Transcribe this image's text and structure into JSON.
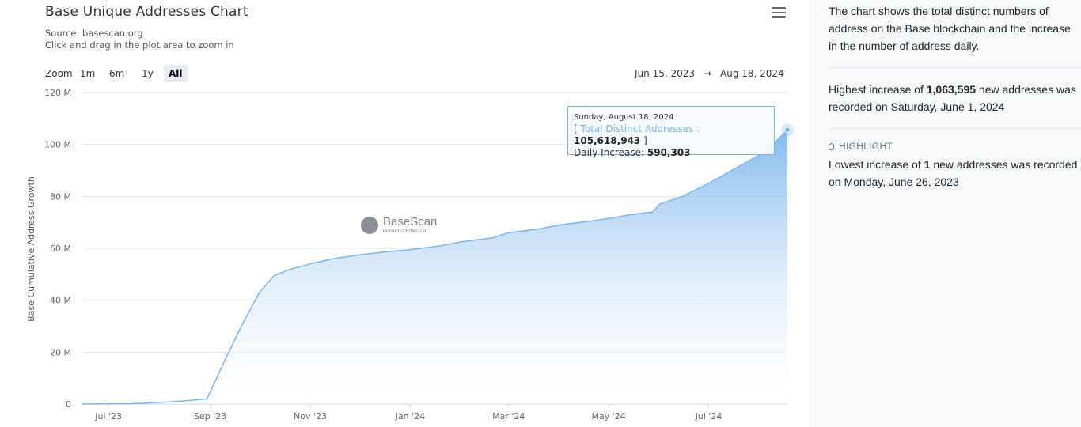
{
  "chart_header": {
    "title": "Base Unique Addresses Chart",
    "source": "Source: basescan.org",
    "hint": "Click and drag in the plot area to zoom in"
  },
  "zoom": {
    "label": "Zoom",
    "options": [
      "1m",
      "6m",
      "1y",
      "All"
    ],
    "selected": "All"
  },
  "range": {
    "from": "Jun 15, 2023",
    "arrow": "→",
    "to": "Aug 18, 2024"
  },
  "watermark": {
    "name": "BaseScan",
    "sub": "Product of Etherscan"
  },
  "tooltip": {
    "date": "Sunday, August 18, 2024",
    "bracket_open": "[",
    "series_label": "Total Distinct Addresses",
    "separator": ":",
    "value": "105,618,943",
    "bracket_close": "]",
    "daily_label": "Daily Increase:",
    "daily_value": "590,303"
  },
  "side_panel": {
    "description": "The chart shows the total distinct numbers of address on the Base blockchain and the increase in the number of address daily.",
    "highest_prefix": "Highest increase of",
    "highest_value": "1,063,595",
    "highest_suffix": "new addresses was recorded on Saturday, June 1, 2024",
    "highlight_label": "HIGHLIGHT",
    "lowest_prefix": "Lowest increase of",
    "lowest_value": "1",
    "lowest_suffix": "new addresses was recorded on Monday, June 26, 2023"
  },
  "colors": {
    "series": "#7cb5ec",
    "area_top": "#7cb5ec",
    "area_bottom": "#ffffff"
  },
  "chart_data": {
    "type": "area",
    "title": "Base Unique Addresses Chart",
    "ylabel": "Base Cumulative Address Growth",
    "xlabel": "",
    "ylim": [
      0,
      120000000
    ],
    "y_ticks": [
      0,
      20000000,
      40000000,
      60000000,
      80000000,
      100000000,
      120000000
    ],
    "y_tick_labels": [
      "0",
      "20 M",
      "40 M",
      "60 M",
      "80 M",
      "100 M",
      "120 M"
    ],
    "x_range": [
      "2023-06-15",
      "2024-08-18"
    ],
    "x_ticks": [
      "2023-07-01",
      "2023-09-01",
      "2023-11-01",
      "2024-01-01",
      "2024-03-01",
      "2024-05-01",
      "2024-07-01"
    ],
    "x_tick_labels": [
      "Jul '23",
      "Sep '23",
      "Nov '23",
      "Jan '24",
      "Mar '24",
      "May '24",
      "Jul '24"
    ],
    "grid": true,
    "legend": false,
    "series": [
      {
        "name": "Total Distinct Addresses",
        "x": [
          "2023-06-15",
          "2023-07-15",
          "2023-08-01",
          "2023-08-15",
          "2023-08-30",
          "2023-09-10",
          "2023-09-20",
          "2023-10-01",
          "2023-10-10",
          "2023-10-20",
          "2023-11-01",
          "2023-11-15",
          "2023-12-01",
          "2023-12-15",
          "2024-01-01",
          "2024-01-20",
          "2024-02-01",
          "2024-02-20",
          "2024-03-01",
          "2024-03-20",
          "2024-04-01",
          "2024-04-20",
          "2024-05-01",
          "2024-05-15",
          "2024-05-28",
          "2024-06-01",
          "2024-06-15",
          "2024-07-01",
          "2024-07-15",
          "2024-08-01",
          "2024-08-10",
          "2024-08-18"
        ],
        "y": [
          0,
          150000,
          600000,
          1200000,
          2000000,
          17000000,
          30000000,
          43000000,
          49500000,
          52000000,
          54000000,
          56000000,
          57500000,
          58500000,
          59500000,
          61000000,
          62500000,
          64000000,
          66000000,
          67500000,
          69000000,
          70500000,
          71500000,
          73000000,
          74000000,
          77000000,
          80000000,
          85000000,
          90000000,
          96000000,
          100500000,
          105618943
        ]
      }
    ]
  }
}
